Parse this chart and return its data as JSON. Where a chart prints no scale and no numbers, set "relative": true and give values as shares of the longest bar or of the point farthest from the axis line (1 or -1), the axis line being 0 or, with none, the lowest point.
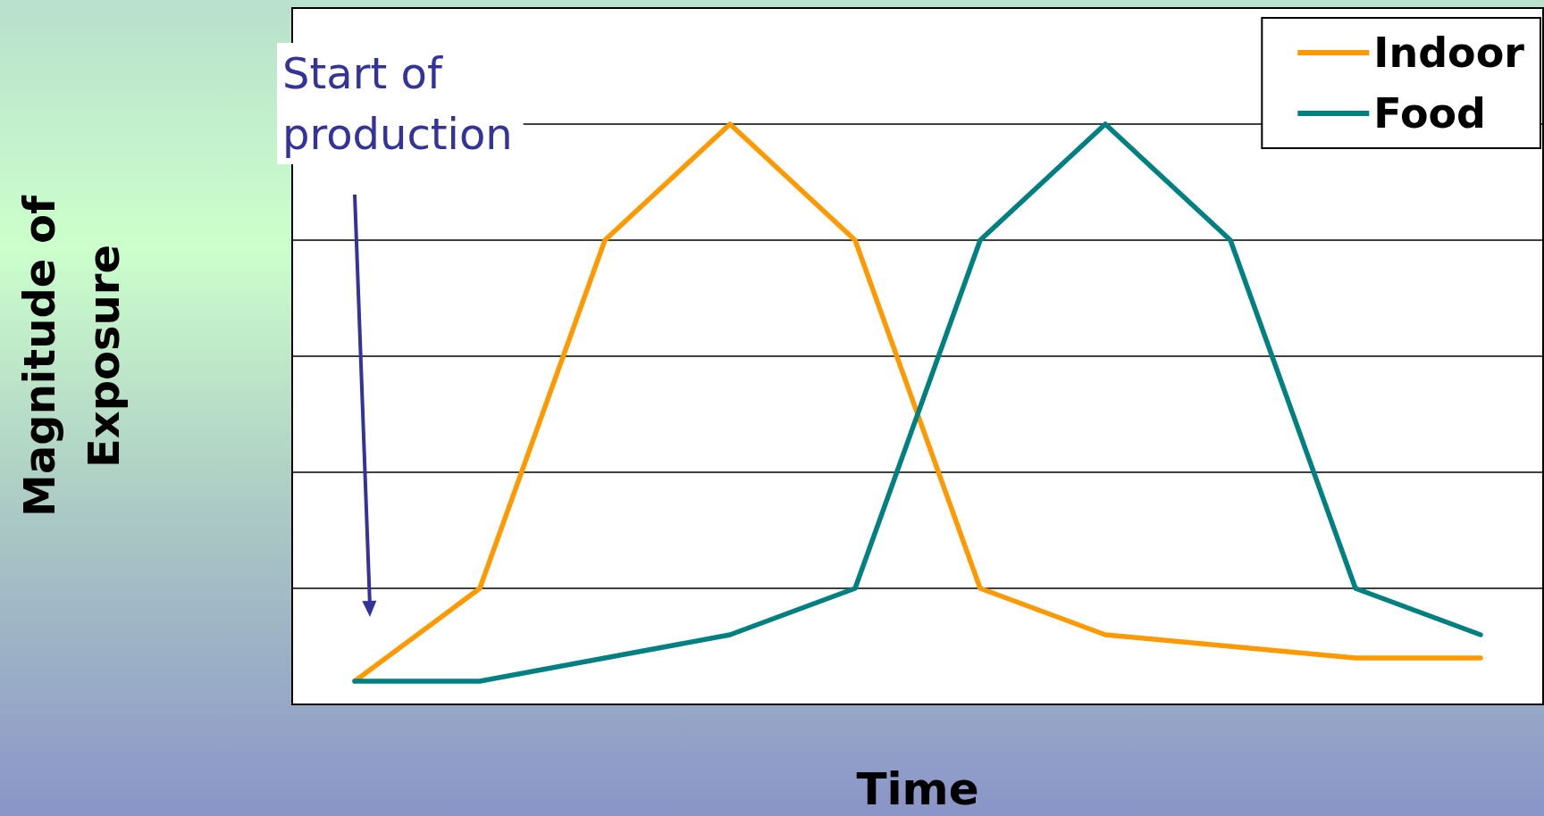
{
  "chart_data": {
    "type": "line",
    "relative": true,
    "xlabel": "Time",
    "ylabel": "Magnitude of\nExposure",
    "categories": [
      null,
      null,
      null,
      null,
      null,
      null,
      null,
      null,
      null,
      null
    ],
    "series": [
      {
        "name": "Indoor",
        "color": "#ff9900",
        "values": [
          0.04,
          0.2,
          0.8,
          1,
          0.8,
          0.2,
          0.12,
          0.1,
          0.08,
          0.08
        ]
      },
      {
        "name": "Food",
        "color": "#008080",
        "values": [
          0.04,
          0.04,
          0.08,
          0.12,
          0.2,
          0.8,
          1,
          0.8,
          0.2,
          0.12
        ]
      }
    ],
    "annotations": [
      "Start of\nproduction"
    ],
    "grid": "y",
    "legend": "top right",
    "marker": "none",
    "line_style": "solid"
  }
}
